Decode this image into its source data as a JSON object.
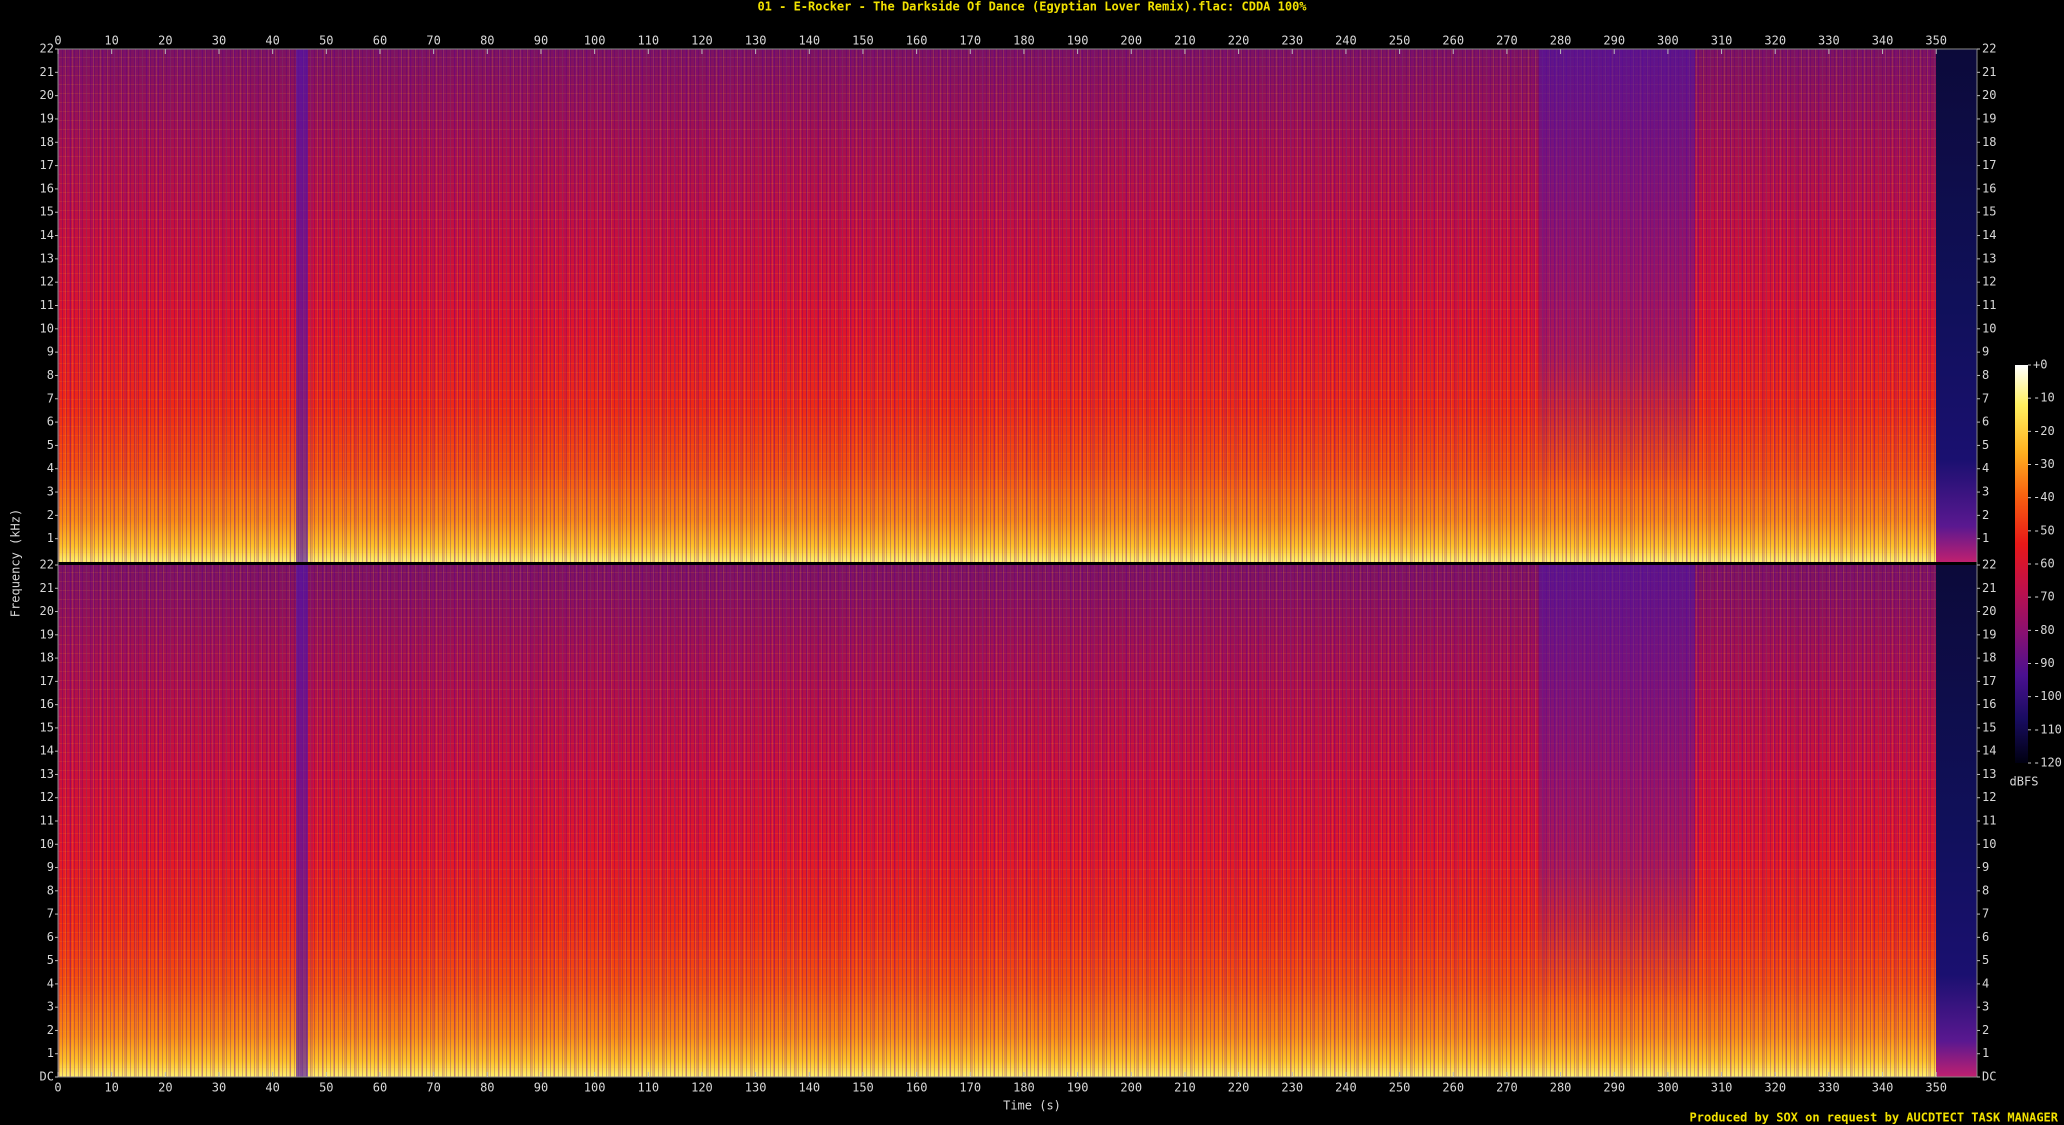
{
  "chart_data": {
    "type": "spectrogram",
    "title": "01 - E-Rocker - The Darkside Of Dance (Egyptian Lover Remix).flac: CDDA 100%",
    "xlabel": "Time (s)",
    "ylabel": "Frequency (kHz)",
    "xlim": [
      0,
      357.6
    ],
    "xticks": [
      0,
      10,
      20,
      30,
      40,
      50,
      60,
      70,
      80,
      90,
      100,
      110,
      120,
      130,
      140,
      150,
      160,
      170,
      180,
      190,
      200,
      210,
      220,
      230,
      240,
      250,
      260,
      270,
      280,
      290,
      300,
      310,
      320,
      330,
      340,
      350
    ],
    "channels": [
      {
        "ylim": [
          0,
          22
        ],
        "yticks": [
          1,
          2,
          3,
          4,
          5,
          6,
          7,
          8,
          9,
          10,
          11,
          12,
          13,
          14,
          15,
          16,
          17,
          18,
          19,
          20,
          21,
          22
        ]
      },
      {
        "ylim": [
          0,
          22
        ],
        "yticks": [
          {
            "value": 0,
            "label": "DC"
          },
          1,
          2,
          3,
          4,
          5,
          6,
          7,
          8,
          9,
          10,
          11,
          12,
          13,
          14,
          15,
          16,
          17,
          18,
          19,
          20,
          21,
          22
        ]
      }
    ],
    "colorbar": {
      "label": "dBFS",
      "lim": [
        -120,
        0
      ],
      "ticks": [
        {
          "value": 0,
          "label": "+0"
        },
        -10,
        -20,
        -30,
        -40,
        -50,
        -60,
        -70,
        -80,
        -90,
        -100,
        -110,
        -120
      ]
    }
  },
  "footer": "Produced by SOX on request by AUCDTECT TASK MANAGER"
}
